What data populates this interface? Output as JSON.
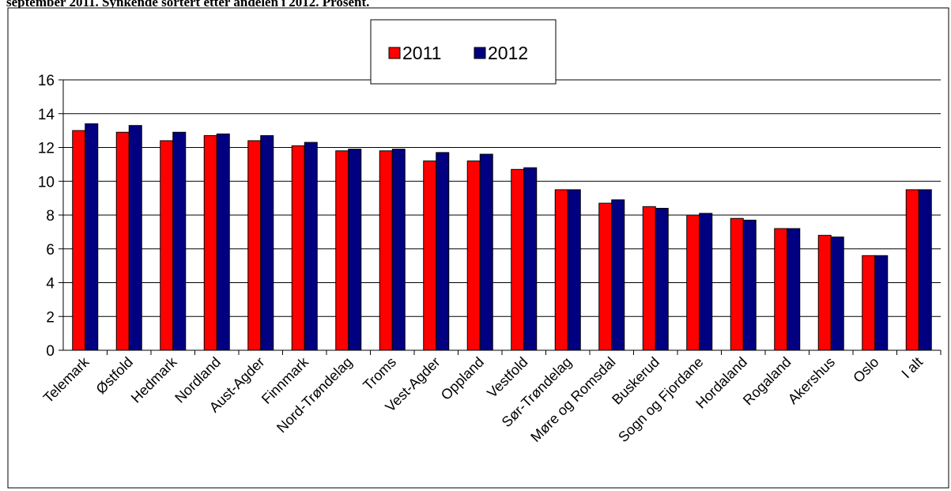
{
  "figure": {
    "caption": "september 2011. Synkende sortert etter andelen i 2012. Prosent."
  },
  "chart_data": {
    "type": "bar",
    "categories": [
      "Telemark",
      "Østfold",
      "Hedmark",
      "Nordland",
      "Aust-Agder",
      "Finnmark",
      "Nord-Trøndelag",
      "Troms",
      "Vest-Agder",
      "Oppland",
      "Vestfold",
      "Sør-Trøndelag",
      "Møre og Romsdal",
      "Buskerud",
      "Sogn og Fjordane",
      "Hordaland",
      "Rogaland",
      "Akershus",
      "Oslo",
      "I alt"
    ],
    "series": [
      {
        "name": "2011",
        "color": "#ff0000",
        "values": [
          13.0,
          12.9,
          12.4,
          12.7,
          12.4,
          12.1,
          11.8,
          11.8,
          11.2,
          11.2,
          10.7,
          9.5,
          8.7,
          8.5,
          8.0,
          7.8,
          7.2,
          6.8,
          5.6,
          9.5
        ]
      },
      {
        "name": "2012",
        "color": "#000080",
        "values": [
          13.4,
          13.3,
          12.9,
          12.8,
          12.7,
          12.3,
          11.9,
          11.9,
          11.7,
          11.6,
          10.8,
          9.5,
          8.9,
          8.4,
          8.1,
          7.7,
          7.2,
          6.7,
          5.6,
          9.5
        ]
      }
    ],
    "ylim": [
      0,
      16
    ],
    "yticks": [
      0,
      2,
      4,
      6,
      8,
      10,
      12,
      14,
      16
    ],
    "grid": true,
    "legend": "top-center"
  }
}
